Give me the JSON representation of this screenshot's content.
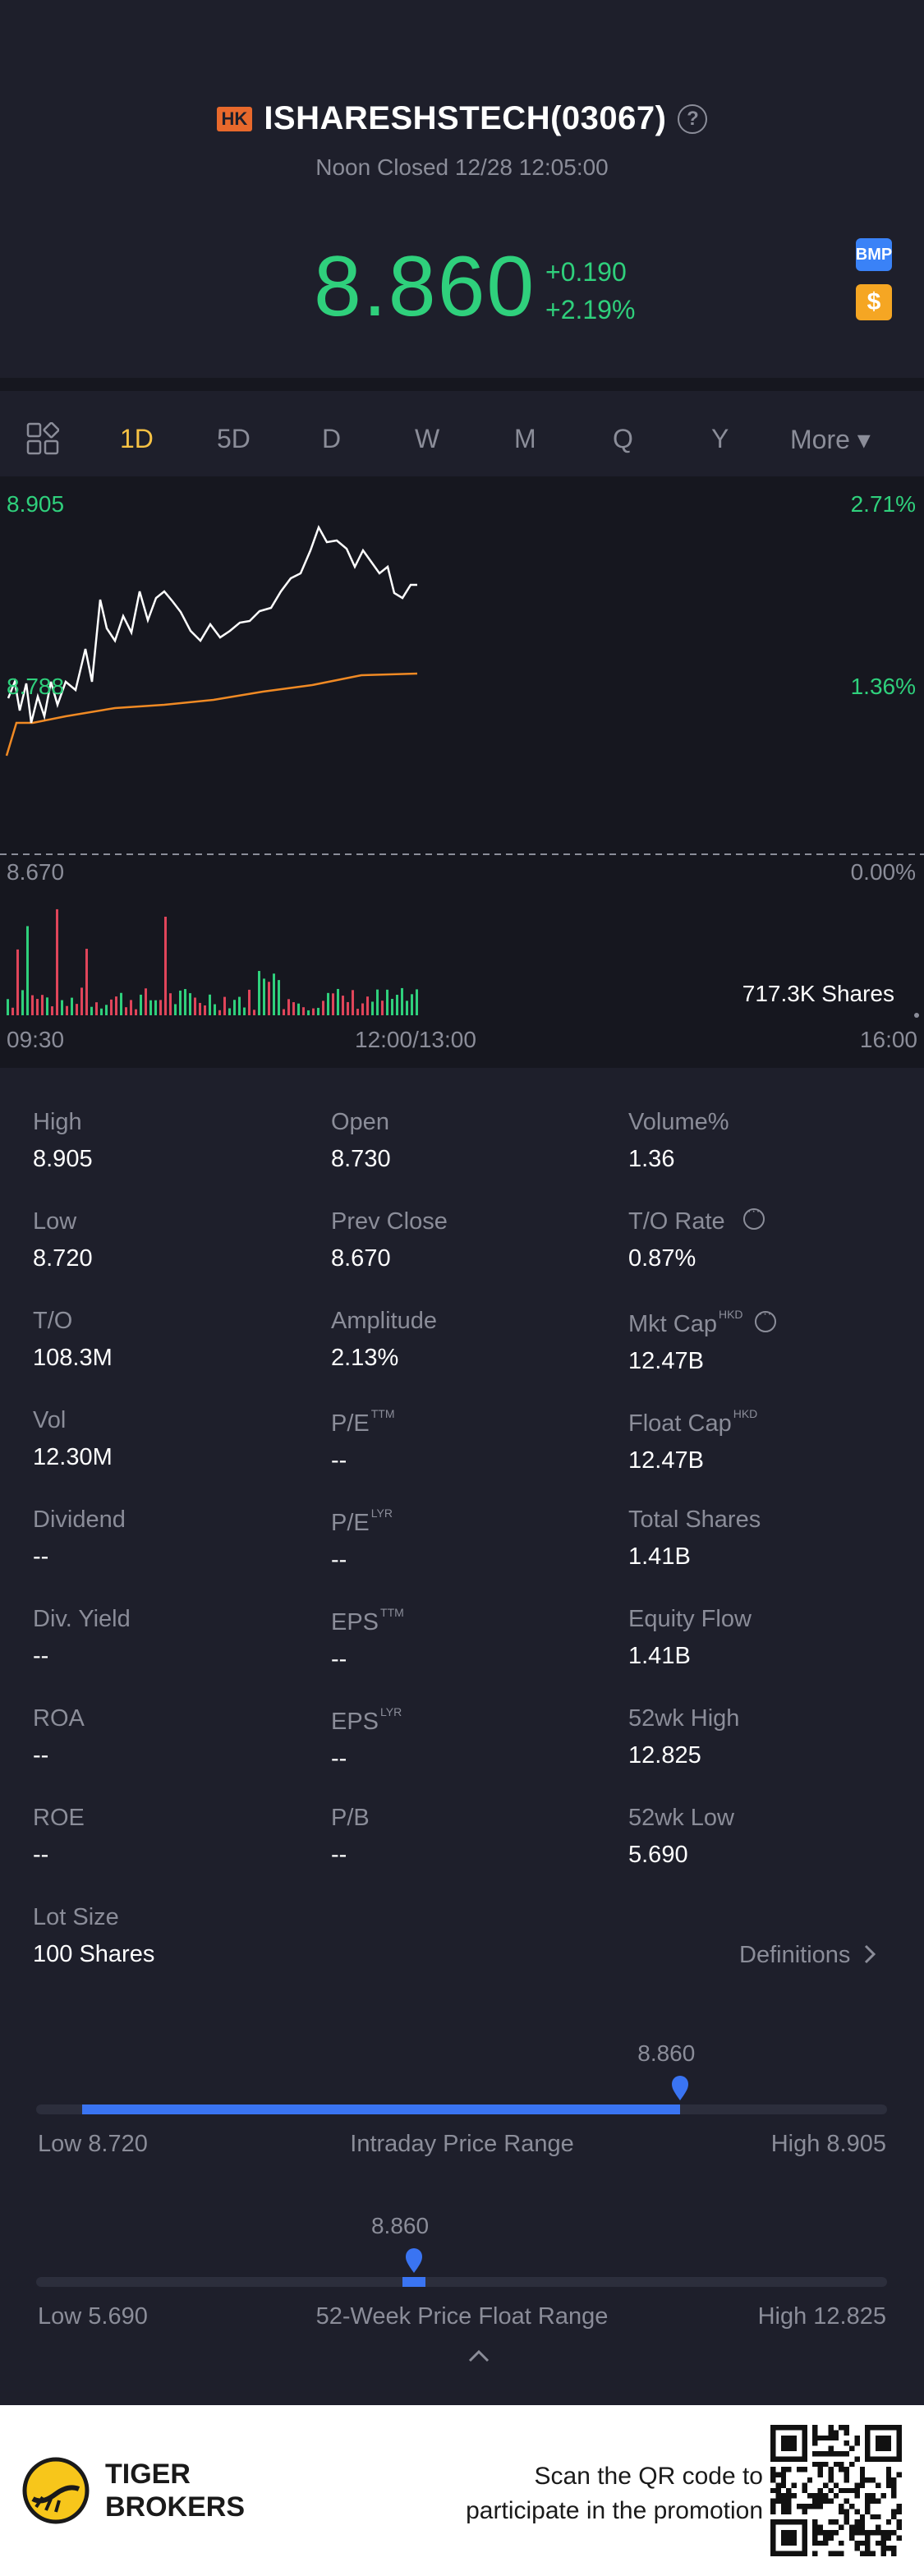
{
  "header": {
    "market_badge": "HK",
    "title": "ISHARESHSTECH(03067)",
    "help_icon": "?",
    "status": "Noon Closed 12/28 12:05:00",
    "price": "8.860",
    "change": "+0.190",
    "change_pct": "+2.19%",
    "bmp_label": "BMP",
    "dollar_label": "$"
  },
  "colors": {
    "up": "#2fd07c",
    "down": "#e0455a",
    "accent": "#f7c244",
    "avg_line": "#f08a24",
    "range_fill": "#3a74f2"
  },
  "tabs": {
    "items": [
      "1D",
      "5D",
      "D",
      "W",
      "M",
      "Q",
      "Y",
      "More ▾"
    ],
    "active": "1D"
  },
  "chart": {
    "price_high": "8.905",
    "pct_high": "2.71%",
    "price_mid": "8.788",
    "pct_mid": "1.36%",
    "price_low": "8.670",
    "pct_low": "0.00%",
    "volume_label": "717.3K Shares",
    "time_start": "09:30",
    "time_mid": "12:00/13:00",
    "time_end": "16:00"
  },
  "stats": {
    "high": {
      "label": "High",
      "value": "8.905"
    },
    "open": {
      "label": "Open",
      "value": "8.730"
    },
    "volume_pct": {
      "label": "Volume%",
      "value": "1.36"
    },
    "low": {
      "label": "Low",
      "value": "8.720"
    },
    "prev_close": {
      "label": "Prev Close",
      "value": "8.670"
    },
    "to_rate": {
      "label": "T/O Rate",
      "value": "0.87%"
    },
    "to": {
      "label": "T/O",
      "value": "108.3M"
    },
    "amplitude": {
      "label": "Amplitude",
      "value": "2.13%"
    },
    "mkt_cap": {
      "label": "Mkt Cap",
      "sup": "HKD",
      "value": "12.47B"
    },
    "vol": {
      "label": "Vol",
      "value": "12.30M"
    },
    "pe_ttm": {
      "label": "P/E",
      "sup": "TTM",
      "value": "--"
    },
    "float_cap": {
      "label": "Float Cap",
      "sup": "HKD",
      "value": "12.47B"
    },
    "dividend": {
      "label": "Dividend",
      "value": "--"
    },
    "pe_lyr": {
      "label": "P/E",
      "sup": "LYR",
      "value": "--"
    },
    "total_shares": {
      "label": "Total Shares",
      "value": "1.41B"
    },
    "div_yield": {
      "label": "Div. Yield",
      "value": "--"
    },
    "eps_ttm": {
      "label": "EPS",
      "sup": "TTM",
      "value": "--"
    },
    "equity_flow": {
      "label": "Equity Flow",
      "value": "1.41B"
    },
    "roa": {
      "label": "ROA",
      "value": "--"
    },
    "eps_lyr": {
      "label": "EPS",
      "sup": "LYR",
      "value": "--"
    },
    "wk52_high": {
      "label": "52wk High",
      "value": "12.825"
    },
    "roe": {
      "label": "ROE",
      "value": "--"
    },
    "pb": {
      "label": "P/B",
      "value": "--"
    },
    "wk52_low": {
      "label": "52wk Low",
      "value": "5.690"
    },
    "lot_size": {
      "label": "Lot Size",
      "value": "100 Shares"
    }
  },
  "definitions_label": "Definitions",
  "intraday_range": {
    "current": "8.860",
    "low_label": "Low 8.720",
    "title": "Intraday Price Range",
    "high_label": "High 8.905",
    "position": 0.757
  },
  "week52_range": {
    "current": "8.860",
    "low_label": "Low 5.690",
    "title": "52-Week Price Float Range",
    "high_label": "High 12.825",
    "position": 0.444
  },
  "footer": {
    "brand_line1": "TIGER",
    "brand_line2": "BROKERS",
    "promo_line1": "Scan the QR code to",
    "promo_line2": "participate in the promotion"
  }
}
